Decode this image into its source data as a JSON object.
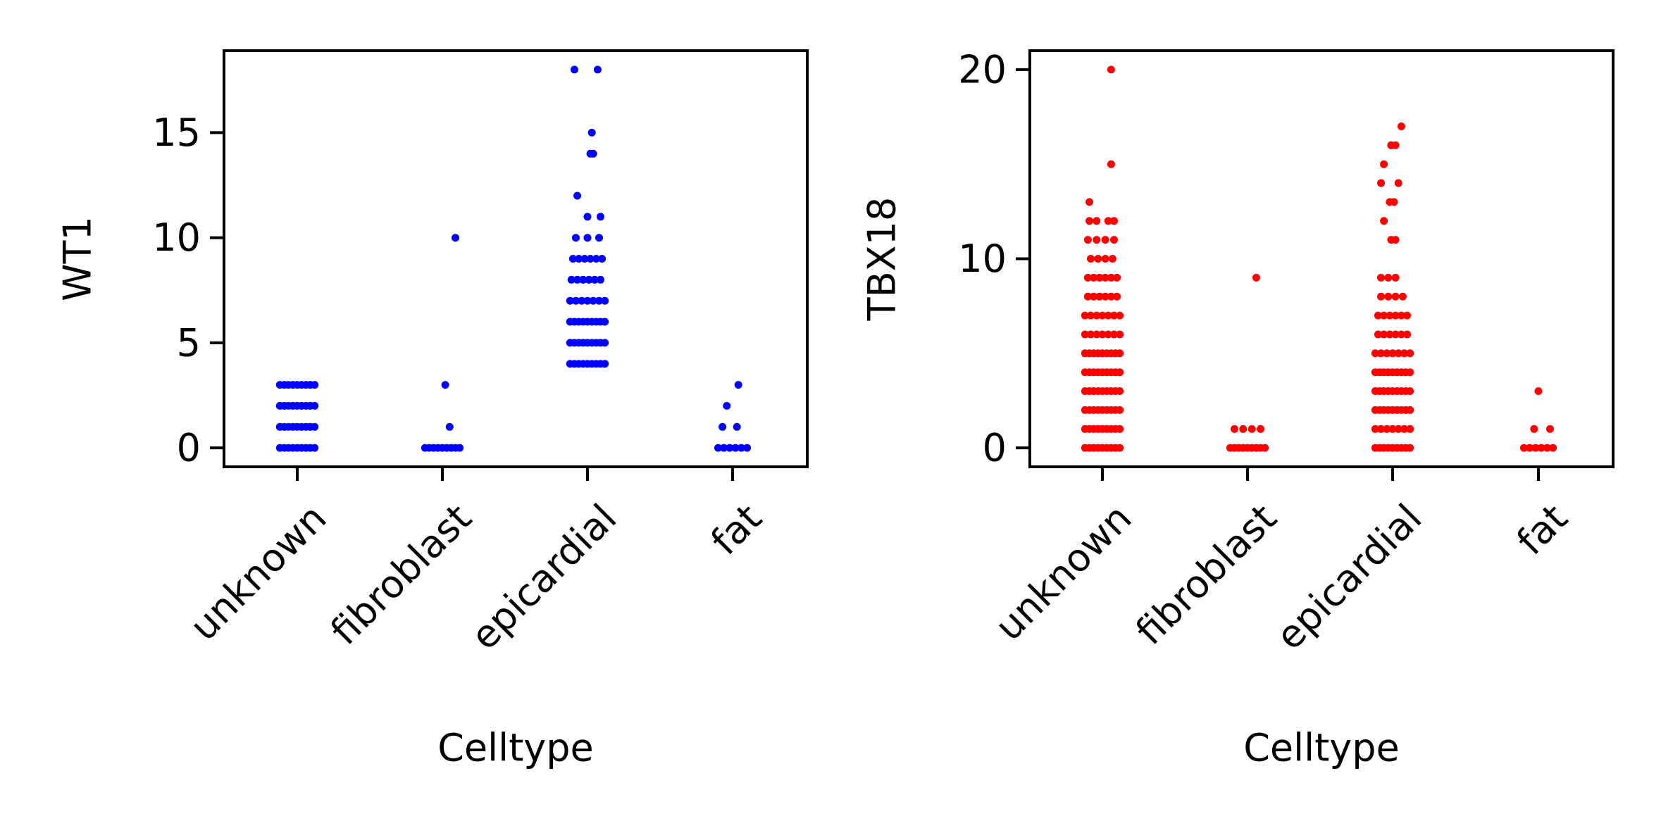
{
  "chart_data": [
    {
      "type": "scatter",
      "subtype": "strip",
      "xlabel": "Celltype",
      "ylabel": "WT1",
      "categories": [
        "unknown",
        "fibroblast",
        "epicardial",
        "fat"
      ],
      "color": "#0000ff",
      "ylim": [
        -0.9,
        18.9
      ],
      "yticks": [
        0,
        5,
        10,
        15
      ],
      "grid": false,
      "legend": "none",
      "points": [
        {
          "category": "unknown",
          "y": 0,
          "jitter": [
            -0.12,
            -0.09,
            -0.06,
            -0.03,
            0.0,
            0.03,
            0.06,
            0.09,
            0.12
          ]
        },
        {
          "category": "unknown",
          "y": 1,
          "jitter": [
            -0.12,
            -0.09,
            -0.06,
            -0.03,
            0.0,
            0.03,
            0.06,
            0.09,
            0.12
          ]
        },
        {
          "category": "unknown",
          "y": 2,
          "jitter": [
            -0.12,
            -0.09,
            -0.06,
            -0.03,
            0.0,
            0.03,
            0.06,
            0.09,
            0.12
          ]
        },
        {
          "category": "unknown",
          "y": 3,
          "jitter": [
            -0.12,
            -0.09,
            -0.06,
            -0.03,
            0.0,
            0.03,
            0.06,
            0.09,
            0.12
          ]
        },
        {
          "category": "fibroblast",
          "y": 0,
          "jitter": [
            -0.12,
            -0.09,
            -0.06,
            -0.03,
            0.0,
            0.03,
            0.06,
            0.09,
            0.12
          ]
        },
        {
          "category": "fibroblast",
          "y": 1,
          "jitter": [
            0.05
          ]
        },
        {
          "category": "fibroblast",
          "y": 3,
          "jitter": [
            0.02
          ]
        },
        {
          "category": "fibroblast",
          "y": 10,
          "jitter": [
            0.09
          ]
        },
        {
          "category": "epicardial",
          "y": 4,
          "jitter": [
            -0.12,
            -0.09,
            -0.06,
            -0.03,
            0.0,
            0.03,
            0.06,
            0.09,
            0.12
          ]
        },
        {
          "category": "epicardial",
          "y": 5,
          "jitter": [
            -0.12,
            -0.09,
            -0.06,
            -0.03,
            0.0,
            0.03,
            0.06,
            0.09,
            0.12
          ]
        },
        {
          "category": "epicardial",
          "y": 6,
          "jitter": [
            -0.12,
            -0.09,
            -0.06,
            -0.03,
            0.0,
            0.03,
            0.06,
            0.09,
            0.12
          ]
        },
        {
          "category": "epicardial",
          "y": 7,
          "jitter": [
            -0.12,
            -0.08,
            -0.04,
            0.0,
            0.04,
            0.08,
            0.12
          ]
        },
        {
          "category": "epicardial",
          "y": 8,
          "jitter": [
            -0.11,
            -0.07,
            -0.03,
            0.01,
            0.05,
            0.09
          ]
        },
        {
          "category": "epicardial",
          "y": 9,
          "jitter": [
            -0.1,
            -0.06,
            -0.02,
            0.02,
            0.06,
            0.1
          ]
        },
        {
          "category": "epicardial",
          "y": 10,
          "jitter": [
            -0.08,
            0.0,
            0.08
          ]
        },
        {
          "category": "epicardial",
          "y": 11,
          "jitter": [
            0.0,
            0.09
          ]
        },
        {
          "category": "epicardial",
          "y": 12,
          "jitter": [
            -0.07
          ]
        },
        {
          "category": "epicardial",
          "y": 14,
          "jitter": [
            0.02,
            0.04
          ]
        },
        {
          "category": "epicardial",
          "y": 15,
          "jitter": [
            0.03
          ]
        },
        {
          "category": "epicardial",
          "y": 18,
          "jitter": [
            -0.09,
            0.07
          ]
        },
        {
          "category": "fat",
          "y": 0,
          "jitter": [
            -0.1,
            -0.06,
            -0.02,
            0.02,
            0.06,
            0.1
          ]
        },
        {
          "category": "fat",
          "y": 1,
          "jitter": [
            -0.07,
            0.03
          ]
        },
        {
          "category": "fat",
          "y": 2,
          "jitter": [
            -0.04
          ]
        },
        {
          "category": "fat",
          "y": 3,
          "jitter": [
            0.04
          ]
        }
      ]
    },
    {
      "type": "scatter",
      "subtype": "strip",
      "xlabel": "Celltype",
      "ylabel": "TBX18",
      "categories": [
        "unknown",
        "fibroblast",
        "epicardial",
        "fat"
      ],
      "color": "#ff0000",
      "ylim": [
        -1.0,
        21.0
      ],
      "yticks": [
        0,
        10,
        20
      ],
      "grid": false,
      "legend": "none",
      "points": [
        {
          "category": "unknown",
          "y": 0,
          "jitter": [
            -0.12,
            -0.09,
            -0.06,
            -0.03,
            0.0,
            0.03,
            0.06,
            0.09,
            0.12
          ]
        },
        {
          "category": "unknown",
          "y": 1,
          "jitter": [
            -0.12,
            -0.09,
            -0.06,
            -0.03,
            0.0,
            0.03,
            0.06,
            0.09,
            0.12
          ]
        },
        {
          "category": "unknown",
          "y": 2,
          "jitter": [
            -0.12,
            -0.09,
            -0.06,
            -0.03,
            0.0,
            0.03,
            0.06,
            0.09,
            0.12
          ]
        },
        {
          "category": "unknown",
          "y": 3,
          "jitter": [
            -0.12,
            -0.09,
            -0.06,
            -0.03,
            0.0,
            0.03,
            0.06,
            0.09,
            0.12
          ]
        },
        {
          "category": "unknown",
          "y": 4,
          "jitter": [
            -0.12,
            -0.09,
            -0.06,
            -0.03,
            0.0,
            0.03,
            0.06,
            0.09,
            0.12
          ]
        },
        {
          "category": "unknown",
          "y": 5,
          "jitter": [
            -0.12,
            -0.09,
            -0.06,
            -0.03,
            0.0,
            0.03,
            0.06,
            0.09,
            0.12
          ]
        },
        {
          "category": "unknown",
          "y": 6,
          "jitter": [
            -0.12,
            -0.08,
            -0.04,
            0.0,
            0.04,
            0.08,
            0.12
          ]
        },
        {
          "category": "unknown",
          "y": 7,
          "jitter": [
            -0.12,
            -0.08,
            -0.04,
            0.0,
            0.04,
            0.08,
            0.12
          ]
        },
        {
          "category": "unknown",
          "y": 8,
          "jitter": [
            -0.1,
            -0.06,
            -0.02,
            0.02,
            0.06,
            0.1
          ]
        },
        {
          "category": "unknown",
          "y": 9,
          "jitter": [
            -0.1,
            -0.06,
            -0.02,
            0.02,
            0.06,
            0.1
          ]
        },
        {
          "category": "unknown",
          "y": 10,
          "jitter": [
            -0.08,
            -0.03,
            0.02,
            0.07
          ]
        },
        {
          "category": "unknown",
          "y": 11,
          "jitter": [
            -0.1,
            -0.04,
            0.02,
            0.08
          ]
        },
        {
          "category": "unknown",
          "y": 12,
          "jitter": [
            -0.09,
            -0.04,
            0.04,
            0.08
          ]
        },
        {
          "category": "unknown",
          "y": 13,
          "jitter": [
            -0.09
          ]
        },
        {
          "category": "unknown",
          "y": 15,
          "jitter": [
            0.06
          ]
        },
        {
          "category": "unknown",
          "y": 20,
          "jitter": [
            0.06
          ]
        },
        {
          "category": "fibroblast",
          "y": 0,
          "jitter": [
            -0.12,
            -0.09,
            -0.06,
            -0.03,
            0.0,
            0.03,
            0.06,
            0.09,
            0.12
          ]
        },
        {
          "category": "fibroblast",
          "y": 1,
          "jitter": [
            -0.09,
            -0.03,
            0.03,
            0.09
          ]
        },
        {
          "category": "fibroblast",
          "y": 9,
          "jitter": [
            0.06
          ]
        },
        {
          "category": "epicardial",
          "y": 0,
          "jitter": [
            -0.12,
            -0.09,
            -0.06,
            -0.03,
            0.0,
            0.03,
            0.06,
            0.09,
            0.12
          ]
        },
        {
          "category": "epicardial",
          "y": 1,
          "jitter": [
            -0.12,
            -0.08,
            -0.04,
            0.0,
            0.04,
            0.08,
            0.12
          ]
        },
        {
          "category": "epicardial",
          "y": 2,
          "jitter": [
            -0.12,
            -0.09,
            -0.06,
            -0.03,
            0.0,
            0.03,
            0.06,
            0.09,
            0.12
          ]
        },
        {
          "category": "epicardial",
          "y": 3,
          "jitter": [
            -0.12,
            -0.09,
            -0.06,
            -0.03,
            0.0,
            0.03,
            0.06,
            0.09,
            0.12
          ]
        },
        {
          "category": "epicardial",
          "y": 4,
          "jitter": [
            -0.12,
            -0.09,
            -0.06,
            -0.03,
            0.0,
            0.03,
            0.06,
            0.09,
            0.12
          ]
        },
        {
          "category": "epicardial",
          "y": 5,
          "jitter": [
            -0.12,
            -0.08,
            -0.04,
            0.0,
            0.04,
            0.08,
            0.12
          ]
        },
        {
          "category": "epicardial",
          "y": 6,
          "jitter": [
            -0.1,
            -0.06,
            -0.02,
            0.02,
            0.06,
            0.1
          ]
        },
        {
          "category": "epicardial",
          "y": 7,
          "jitter": [
            -0.1,
            -0.06,
            -0.02,
            0.02,
            0.06,
            0.1
          ]
        },
        {
          "category": "epicardial",
          "y": 8,
          "jitter": [
            -0.08,
            -0.03,
            0.02,
            0.07
          ]
        },
        {
          "category": "epicardial",
          "y": 9,
          "jitter": [
            -0.08,
            -0.03,
            0.02
          ]
        },
        {
          "category": "epicardial",
          "y": 11,
          "jitter": [
            -0.01,
            0.02
          ]
        },
        {
          "category": "epicardial",
          "y": 12,
          "jitter": [
            -0.06
          ]
        },
        {
          "category": "epicardial",
          "y": 13,
          "jitter": [
            -0.02,
            0.01
          ]
        },
        {
          "category": "epicardial",
          "y": 14,
          "jitter": [
            -0.08,
            0.04
          ]
        },
        {
          "category": "epicardial",
          "y": 15,
          "jitter": [
            -0.06
          ]
        },
        {
          "category": "epicardial",
          "y": 16,
          "jitter": [
            -0.01,
            0.02
          ]
        },
        {
          "category": "epicardial",
          "y": 17,
          "jitter": [
            0.06
          ]
        },
        {
          "category": "fat",
          "y": 0,
          "jitter": [
            -0.1,
            -0.06,
            -0.02,
            0.02,
            0.06,
            0.1
          ]
        },
        {
          "category": "fat",
          "y": 1,
          "jitter": [
            -0.03,
            0.08
          ]
        },
        {
          "category": "fat",
          "y": 3,
          "jitter": [
            0.0
          ]
        }
      ]
    }
  ]
}
